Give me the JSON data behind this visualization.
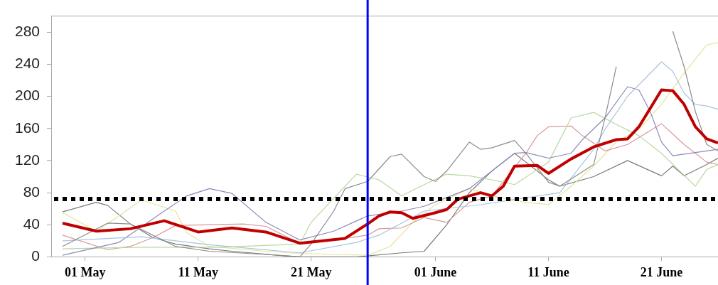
{
  "chart_data": {
    "type": "line",
    "xlim": [
      "--04-28",
      "--06-26"
    ],
    "ylim": [
      0,
      300
    ],
    "xticks": [
      {
        "value": "--05-01",
        "label": "01 May"
      },
      {
        "value": "--05-11",
        "label": "11 May"
      },
      {
        "value": "--05-21",
        "label": "21 May"
      },
      {
        "value": "--06-01",
        "label": "01 June"
      },
      {
        "value": "--06-11",
        "label": "11 June"
      },
      {
        "value": "--06-21",
        "label": "21 June"
      }
    ],
    "yticks": [
      0,
      40,
      80,
      120,
      160,
      200,
      240,
      280
    ],
    "grid": false,
    "legend": false,
    "ref_lines": [
      {
        "axis": "x",
        "value": "--05-26",
        "color": "#0000ff",
        "line_style": "solid"
      },
      {
        "axis": "y",
        "value": 72,
        "color": "#000000",
        "line_style": "dotted"
      }
    ],
    "series": [
      {
        "color": "#c00000",
        "x": [
          "--04-29",
          "--05-02",
          "--05-05",
          "--05-08",
          "--05-11",
          "--05-14",
          "--05-17",
          "--05-20",
          "--05-24",
          "--05-26",
          "--05-27",
          "--05-28",
          "--05-29",
          "--05-30",
          "--06-01",
          "--06-02",
          "--06-03",
          "--06-05",
          "--06-06",
          "--06-07",
          "--06-08",
          "--06-10",
          "--06-11",
          "--06-13",
          "--06-15",
          "--06-17",
          "--06-18",
          "--06-19",
          "--06-21",
          "--06-22",
          "--06-23",
          "--06-24",
          "--06-25",
          "--06-26"
        ],
        "values": [
          42,
          32,
          35,
          45,
          31,
          36,
          31,
          17,
          23,
          41,
          51,
          56,
          55,
          48,
          55,
          59,
          72,
          80,
          76,
          88,
          113,
          114,
          104,
          122,
          137,
          146,
          147,
          162,
          208,
          207,
          190,
          162,
          147,
          142
        ]
      },
      {
        "color": "#8c8c8c",
        "x": [
          "--04-29",
          "--05-03",
          "--05-05",
          "--05-09",
          "--05-12",
          "--05-17",
          "--05-20",
          "--05-21",
          "--05-23",
          "--05-24",
          "--05-26",
          "--05-28",
          "--05-29",
          "--05-31",
          "--06-01",
          "--06-02",
          "--06-04",
          "--06-05",
          "--06-06",
          "--06-08",
          "--06-09",
          "--06-11",
          "--06-12",
          "--06-15",
          "--06-16",
          "--06-17",
          "--06-18",
          "--06-21",
          "--06-22",
          "--06-23",
          "--06-24",
          "--06-25",
          "--06-26"
        ],
        "values": [
          13,
          42,
          41,
          13,
          7,
          3,
          0,
          16,
          57,
          85,
          94,
          125,
          128,
          100,
          94,
          107,
          143,
          134,
          136,
          145,
          129,
          93,
          88,
          115,
          173,
          237,
          null,
          null,
          281,
          237,
          181,
          140,
          132
        ]
      },
      {
        "color": "#a8c4e0",
        "x": [
          "--04-29",
          "--05-06",
          "--05-12",
          "--05-20",
          "--05-25",
          "--05-27",
          "--05-31",
          "--06-05",
          "--06-12",
          "--06-15",
          "--06-16",
          "--06-18",
          "--06-21",
          "--06-22",
          "--06-23",
          "--06-24",
          "--06-25",
          "--06-26"
        ],
        "values": [
          20,
          25,
          15,
          5,
          18,
          27,
          57,
          65,
          80,
          134,
          159,
          200,
          243,
          231,
          204,
          190,
          188,
          184
        ]
      },
      {
        "color": "#8a8ab8",
        "x": [
          "--04-29",
          "--05-04",
          "--05-08",
          "--05-10",
          "--05-12",
          "--05-14",
          "--05-17",
          "--05-20",
          "--05-23",
          "--05-26",
          "--05-29",
          "--05-31",
          "--06-02",
          "--06-04",
          "--06-06",
          "--06-08",
          "--06-09",
          "--06-11",
          "--06-13",
          "--06-14",
          "--06-16",
          "--06-18",
          "--06-19",
          "--06-20",
          "--06-21",
          "--06-22",
          "--06-26"
        ],
        "values": [
          2,
          18,
          57,
          76,
          85,
          79,
          43,
          21,
          32,
          51,
          57,
          63,
          74,
          85,
          107,
          129,
          130,
          123,
          129,
          146,
          173,
          212,
          208,
          181,
          143,
          126,
          134
        ]
      },
      {
        "color": "#b8d8a0",
        "x": [
          "--04-29",
          "--05-06",
          "--05-13",
          "--05-20",
          "--05-21",
          "--05-25",
          "--05-27",
          "--05-29",
          "--05-31",
          "--06-02",
          "--06-04",
          "--06-06",
          "--06-08",
          "--06-11",
          "--06-13",
          "--06-15",
          "--06-17",
          "--06-19",
          "--06-21",
          "--06-24",
          "--06-25",
          "--06-26"
        ],
        "values": [
          10,
          12,
          12,
          16,
          43,
          103,
          96,
          76,
          90,
          103,
          101,
          96,
          90,
          118,
          173,
          180,
          165,
          151,
          129,
          88,
          109,
          115
        ]
      },
      {
        "color": "#d89898",
        "x": [
          "--04-29",
          "--05-03",
          "--05-05",
          "--05-07",
          "--05-09",
          "--05-15",
          "--05-17",
          "--05-20",
          "--05-23",
          "--05-26",
          "--05-27",
          "--05-29",
          "--05-31",
          "--06-02",
          "--06-04",
          "--06-06",
          "--06-09",
          "--06-10",
          "--06-11",
          "--06-13",
          "--06-14",
          "--06-16",
          "--06-18",
          "--06-21",
          "--06-23",
          "--06-25",
          "--06-26"
        ],
        "values": [
          27,
          9,
          13,
          24,
          39,
          41,
          38,
          17,
          21,
          27,
          35,
          36,
          49,
          43,
          68,
          76,
          129,
          151,
          162,
          163,
          151,
          132,
          140,
          166,
          140,
          118,
          115
        ]
      },
      {
        "color": "#e4e49c",
        "x": [
          "--04-29",
          "--05-02",
          "--05-04",
          "--05-06",
          "--05-09",
          "--05-10",
          "--05-12",
          "--05-17",
          "--05-19",
          "--05-23",
          "--05-26",
          "--05-28",
          "--05-30",
          "--06-01",
          "--06-04",
          "--06-06",
          "--06-09",
          "--06-11",
          "--06-13",
          "--06-15",
          "--06-17",
          "--06-19",
          "--06-21",
          "--06-23",
          "--06-25",
          "--06-26"
        ],
        "values": [
          55,
          32,
          51,
          71,
          57,
          30,
          13,
          7,
          5,
          3,
          2,
          13,
          43,
          65,
          85,
          76,
          68,
          65,
          88,
          113,
          143,
          159,
          190,
          229,
          264,
          267
        ]
      },
      {
        "color": "#7a7a7a",
        "x": [
          "--04-29",
          "--05-02",
          "--05-03",
          "--05-05",
          "--05-07",
          "--05-09",
          "--05-12",
          "--05-14",
          "--05-18",
          "--05-20",
          "--05-25",
          "--05-29",
          "--05-31",
          "--06-02",
          "--06-04",
          "--06-06",
          "--06-08",
          "--06-11",
          "--06-12",
          "--06-15",
          "--06-18",
          "--06-21",
          "--06-22",
          "--06-23",
          "--06-25",
          "--06-26"
        ],
        "values": [
          56,
          68,
          64,
          41,
          24,
          16,
          10,
          7,
          2,
          0,
          0,
          5,
          7,
          40,
          80,
          107,
          129,
          96,
          88,
          100,
          120,
          101,
          113,
          101,
          115,
          123
        ]
      }
    ]
  }
}
